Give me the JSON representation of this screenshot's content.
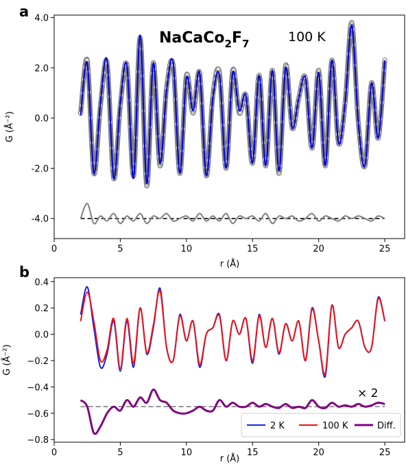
{
  "panels": [
    {
      "letter": "a",
      "title_compound": {
        "base1": "NaCaCo",
        "sub1": "2",
        "base2": "F",
        "sub2": "7"
      },
      "temperature": "100 K",
      "xlabel": "r (Å)",
      "ylabel": "G (Å⁻²)",
      "xticks": [
        "0",
        "5",
        "10",
        "15",
        "20",
        "25"
      ],
      "yticks": [
        "4.0",
        "2.0",
        "0.0",
        "-2.0",
        "-4.0"
      ]
    },
    {
      "letter": "b",
      "xlabel": "r (Å)",
      "ylabel": "G (Å⁻²)",
      "xticks": [
        "0",
        "5",
        "10",
        "15",
        "20",
        "25"
      ],
      "yticks": [
        "0.4",
        "0.2",
        "0.0",
        "−0.2",
        "−0.4",
        "−0.6",
        "−0.8"
      ],
      "scale_note": "× 2",
      "legend": [
        "2 K",
        "100 K",
        "Diff."
      ]
    }
  ],
  "colors": {
    "data": "#808080",
    "fit": "#0000dd",
    "diff": "#808080",
    "k2": "#1f1fe8",
    "k100": "#ee1111",
    "diffb": "#800080",
    "baseline": "#000000",
    "dashed_b": "#888888"
  },
  "chart_data": [
    {
      "type": "line",
      "title": "NaCaCo2F7",
      "annotation": "100 K",
      "xlabel": "r (Å)",
      "ylabel": "G (Å⁻²)",
      "xlim": [
        0,
        26.5
      ],
      "ylim": [
        -4.8,
        4.1
      ],
      "series": [
        {
          "name": "data",
          "style": "open-circles",
          "x": [
            2,
            2.5,
            3,
            3.5,
            4,
            4.5,
            5,
            5.5,
            6,
            6.5,
            7,
            7.5,
            8,
            8.5,
            9,
            9.5,
            10,
            10.5,
            11,
            11.5,
            12,
            12.5,
            13,
            13.5,
            14,
            14.5,
            15,
            15.5,
            16,
            16.5,
            17,
            17.5,
            18,
            18.5,
            19,
            19.5,
            20,
            20.5,
            21,
            21.5,
            22,
            22.5,
            23,
            23.5,
            24,
            24.5,
            25
          ],
          "y": [
            0.2,
            2.3,
            -2.2,
            0.5,
            2.2,
            -2.4,
            0.5,
            2.1,
            -2.3,
            3.2,
            -2.7,
            2.2,
            -1.9,
            1.2,
            2.1,
            -2.2,
            1.7,
            0.2,
            1.8,
            -2.3,
            0.9,
            1.8,
            -2.0,
            1.9,
            0.2,
            0.9,
            -1.8,
            1.7,
            -1.9,
            1.9,
            -2.2,
            2.1,
            -0.4,
            0.8,
            1.6,
            -1.2,
            1.9,
            -1.9,
            2.3,
            -1.0,
            0.6,
            3.8,
            -0.2,
            -1.9,
            1.4,
            -0.8,
            2.3
          ]
        },
        {
          "name": "fit",
          "style": "solid",
          "x": [
            2,
            2.5,
            3,
            3.5,
            4,
            4.5,
            5,
            5.5,
            6,
            6.5,
            7,
            7.5,
            8,
            8.5,
            9,
            9.5,
            10,
            10.5,
            11,
            11.5,
            12,
            12.5,
            13,
            13.5,
            14,
            14.5,
            15,
            15.5,
            16,
            16.5,
            17,
            17.5,
            18,
            18.5,
            19,
            19.5,
            20,
            20.5,
            21,
            21.5,
            22,
            22.5,
            23,
            23.5,
            24,
            24.5,
            25
          ],
          "y": [
            0.1,
            2.2,
            -2.2,
            0.6,
            2.3,
            -2.4,
            0.6,
            2.1,
            -2.4,
            3.3,
            -2.6,
            2.2,
            -1.8,
            1.1,
            2.2,
            -2.2,
            1.6,
            0.3,
            1.8,
            -2.3,
            0.8,
            1.7,
            -2.0,
            1.8,
            0.3,
            0.9,
            -1.8,
            1.7,
            -1.9,
            1.9,
            -2.1,
            2.0,
            -0.4,
            0.8,
            1.6,
            -1.2,
            1.8,
            -1.9,
            2.3,
            -1.0,
            0.6,
            3.7,
            -0.2,
            -1.9,
            1.4,
            -0.8,
            2.3
          ]
        },
        {
          "name": "difference",
          "style": "solid",
          "offset": -4.0,
          "x": [
            2,
            2.5,
            3,
            3.5,
            4,
            4.5,
            5,
            5.5,
            6,
            6.5,
            7,
            7.5,
            8,
            8.5,
            9,
            9.5,
            10,
            10.5,
            11,
            11.5,
            12,
            12.5,
            13,
            13.5,
            14,
            14.5,
            15,
            15.5,
            16,
            16.5,
            17,
            17.5,
            18,
            18.5,
            19,
            19.5,
            20,
            20.5,
            21,
            21.5,
            22,
            22.5,
            23,
            23.5,
            24,
            24.5,
            25
          ],
          "y": [
            -4.0,
            -3.4,
            -4.2,
            -3.9,
            -4.1,
            -3.8,
            -4.2,
            -3.9,
            -4.1,
            -3.8,
            -4.2,
            -3.9,
            -4.0,
            -3.8,
            -4.1,
            -4.0,
            -3.9,
            -4.1,
            -3.8,
            -4.1,
            -3.9,
            -4.1,
            -3.8,
            -4.2,
            -3.9,
            -4.0,
            -3.9,
            -4.1,
            -3.8,
            -4.2,
            -3.9,
            -4.0,
            -3.9,
            -4.1,
            -4.0,
            -3.8,
            -4.1,
            -3.9,
            -4.0,
            -4.1,
            -3.9,
            -4.0,
            -3.9,
            -4.0,
            -4.1,
            -3.9,
            -4.0
          ]
        },
        {
          "name": "baseline",
          "style": "dashed",
          "x": [
            2,
            25
          ],
          "y": [
            -4.0,
            -4.0
          ]
        }
      ]
    },
    {
      "type": "line",
      "xlabel": "r (Å)",
      "ylabel": "G (Å⁻²)",
      "xlim": [
        0,
        26.5
      ],
      "ylim": [
        -0.82,
        0.43
      ],
      "annotation": "× 2",
      "legend_position": "lower-right",
      "series": [
        {
          "name": "2 K",
          "x": [
            2,
            2.5,
            3,
            3.5,
            4,
            4.5,
            5,
            5.5,
            6,
            6.5,
            7,
            7.5,
            8,
            8.5,
            9,
            9.5,
            10,
            10.5,
            11,
            11.5,
            12,
            12.5,
            13,
            13.5,
            14,
            14.5,
            15,
            15.5,
            16,
            16.5,
            17,
            17.5,
            18,
            18.5,
            19,
            19.5,
            20,
            20.5,
            21,
            21.5,
            22,
            22.5,
            23,
            23.5,
            24,
            24.5,
            25
          ],
          "y": [
            0.15,
            0.36,
            0.05,
            -0.25,
            -0.15,
            0.1,
            -0.28,
            0.1,
            -0.25,
            0.2,
            -0.15,
            0.05,
            0.35,
            -0.1,
            -0.2,
            0.15,
            -0.05,
            0.1,
            -0.25,
            0.0,
            0.05,
            0.15,
            -0.2,
            0.1,
            0.0,
            0.12,
            -0.22,
            0.15,
            -0.1,
            0.12,
            -0.15,
            0.08,
            -0.05,
            0.1,
            -0.2,
            0.2,
            -0.05,
            -0.32,
            0.22,
            -0.1,
            0.0,
            0.05,
            0.1,
            -0.1,
            -0.1,
            0.28,
            0.1
          ]
        },
        {
          "name": "100 K",
          "x": [
            2,
            2.5,
            3,
            3.5,
            4,
            4.5,
            5,
            5.5,
            6,
            6.5,
            7,
            7.5,
            8,
            8.5,
            9,
            9.5,
            10,
            10.5,
            11,
            11.5,
            12,
            12.5,
            13,
            13.5,
            14,
            14.5,
            15,
            15.5,
            16,
            16.5,
            17,
            17.5,
            18,
            18.5,
            19,
            19.5,
            20,
            20.5,
            21,
            21.5,
            22,
            22.5,
            23,
            23.5,
            24,
            24.5,
            25
          ],
          "y": [
            0.1,
            0.32,
            0.1,
            -0.2,
            -0.12,
            0.12,
            -0.26,
            0.12,
            -0.22,
            0.2,
            -0.14,
            0.07,
            0.33,
            -0.1,
            -0.2,
            0.14,
            -0.05,
            0.1,
            -0.23,
            0.0,
            0.05,
            0.14,
            -0.2,
            0.1,
            0.0,
            0.12,
            -0.2,
            0.14,
            -0.1,
            0.12,
            -0.14,
            0.08,
            -0.05,
            0.1,
            -0.2,
            0.19,
            -0.05,
            -0.3,
            0.22,
            -0.1,
            0.0,
            0.05,
            0.1,
            -0.1,
            -0.1,
            0.27,
            0.1
          ]
        },
        {
          "name": "Diff.",
          "scale": 2,
          "offset": -0.55,
          "x": [
            2,
            2.5,
            3,
            3.5,
            4,
            4.5,
            5,
            5.5,
            6,
            6.5,
            7,
            7.5,
            8,
            8.5,
            9,
            9.5,
            10,
            10.5,
            11,
            11.5,
            12,
            12.5,
            13,
            13.5,
            14,
            14.5,
            15,
            15.5,
            16,
            16.5,
            17,
            17.5,
            18,
            18.5,
            19,
            19.5,
            20,
            20.5,
            21,
            21.5,
            22,
            22.5,
            23,
            23.5,
            24,
            24.5,
            25
          ],
          "y": [
            -0.5,
            -0.55,
            -0.75,
            -0.7,
            -0.6,
            -0.55,
            -0.58,
            -0.5,
            -0.55,
            -0.48,
            -0.52,
            -0.42,
            -0.5,
            -0.52,
            -0.58,
            -0.6,
            -0.6,
            -0.58,
            -0.55,
            -0.58,
            -0.58,
            -0.5,
            -0.55,
            -0.52,
            -0.55,
            -0.55,
            -0.52,
            -0.55,
            -0.53,
            -0.55,
            -0.56,
            -0.53,
            -0.56,
            -0.55,
            -0.56,
            -0.5,
            -0.55,
            -0.56,
            -0.52,
            -0.55,
            -0.54,
            -0.55,
            -0.53,
            -0.55,
            -0.54,
            -0.52,
            -0.53
          ]
        },
        {
          "name": "baseline",
          "style": "dashed",
          "x": [
            2,
            25
          ],
          "y": [
            -0.55,
            -0.55
          ]
        }
      ]
    }
  ]
}
